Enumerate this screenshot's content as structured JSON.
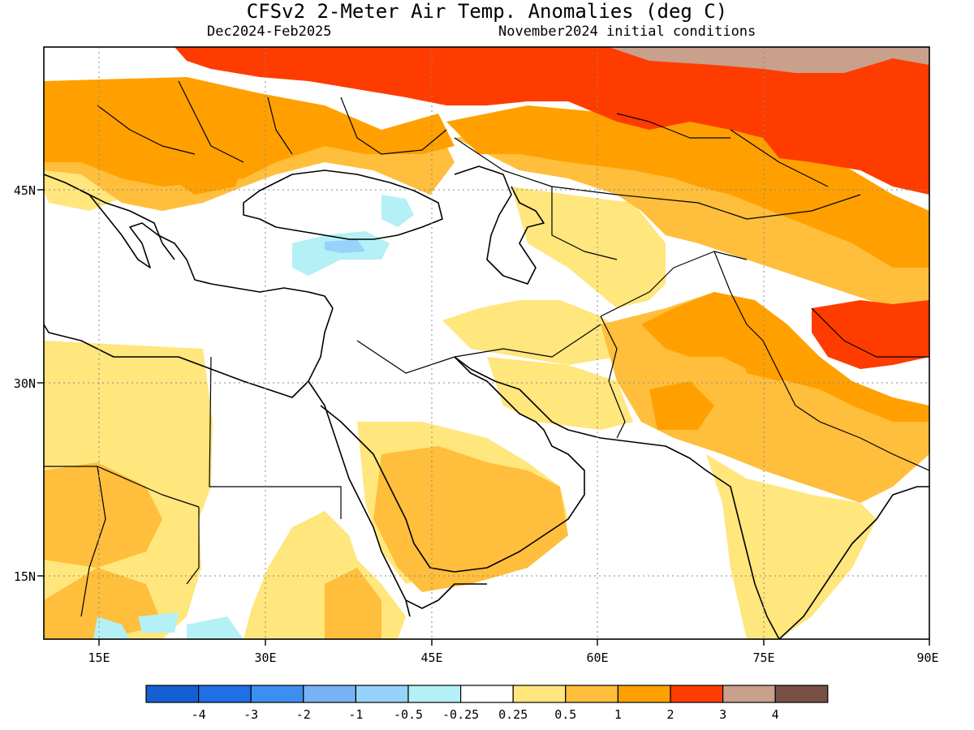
{
  "title": "CFSv2 2-Meter Air Temp. Anomalies (deg C)",
  "period": "Dec2024-Feb2025",
  "initial_conditions": "November2024 initial conditions",
  "map": {
    "lon_range": [
      10,
      90
    ],
    "lat_range": [
      9,
      56
    ],
    "lon_ticks": [
      {
        "value": 15,
        "label": "15E"
      },
      {
        "value": 30,
        "label": "30E"
      },
      {
        "value": 45,
        "label": "45E"
      },
      {
        "value": 60,
        "label": "60E"
      },
      {
        "value": 75,
        "label": "75E"
      },
      {
        "value": 90,
        "label": "90E"
      }
    ],
    "lat_ticks": [
      {
        "value": 15,
        "label": "15N"
      },
      {
        "value": 30,
        "label": "30N"
      },
      {
        "value": 45,
        "label": "45N"
      }
    ],
    "grid": "dotted"
  },
  "legend": {
    "colors": [
      "#1460d2",
      "#1f6fe6",
      "#3c8ff0",
      "#78b4f5",
      "#96d2fa",
      "#b4f0f5",
      "#ffffff",
      "#ffe67d",
      "#ffbe3c",
      "#ffa000",
      "#ff3c00",
      "#c8a08c",
      "#785046"
    ],
    "labels": [
      "-4",
      "-3",
      "-2",
      "-1",
      "-0.5",
      "-0.25",
      "0.25",
      "0.5",
      "1",
      "2",
      "3",
      "4"
    ]
  }
}
